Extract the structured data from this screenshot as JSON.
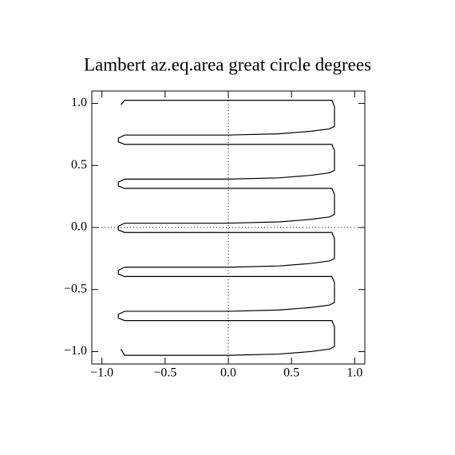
{
  "chart_data": {
    "type": "line",
    "title": "Lambert az.eq.area great circle degrees",
    "color": "#000000",
    "zero_lines": true,
    "xlim": [
      -1.08,
      1.08
    ],
    "ylim": [
      -1.1,
      1.1
    ],
    "xticks": [
      {
        "value": -1.0,
        "label": "−1.0"
      },
      {
        "value": -0.5,
        "label": "−0.5"
      },
      {
        "value": 0,
        "label": "0.0"
      },
      0.5,
      {
        "value": 1.0,
        "label": "1.0"
      }
    ],
    "yticks": [
      {
        "value": -1.0,
        "label": "−1.0"
      },
      {
        "value": -0.5,
        "label": "−0.5"
      },
      {
        "value": 0,
        "label": "0.0"
      },
      0.5,
      {
        "value": 1.0,
        "label": "1.0"
      }
    ],
    "x": [
      -0.85,
      -0.82,
      0,
      0.4,
      0.65,
      0.8,
      0.84,
      0.84,
      0.82,
      0.4,
      0,
      -0.4,
      -0.82,
      -0.87,
      -0.87,
      -0.82,
      0,
      0.4,
      0.65,
      0.8,
      0.84,
      0.84,
      0.82,
      0.4,
      0,
      -0.4,
      -0.82,
      -0.87,
      -0.87,
      -0.82,
      0,
      0.4,
      0.65,
      0.8,
      0.84,
      0.84,
      0.82,
      0.4,
      0,
      -0.4,
      -0.82,
      -0.87,
      -0.87,
      -0.82,
      0,
      0.4,
      0.65,
      0.8,
      0.84,
      0.84,
      0.82,
      0.4,
      0,
      -0.4,
      -0.82,
      -0.87,
      -0.87,
      -0.82,
      0,
      0.4,
      0.65,
      0.8,
      0.84,
      0.84,
      0.82,
      0.4,
      0,
      -0.4,
      -0.82,
      -0.87,
      -0.87,
      -0.82,
      0,
      0.4,
      0.65,
      0.8,
      0.84,
      0.84,
      0.82,
      0.4,
      0,
      -0.4,
      -0.82,
      -0.85
    ],
    "values": [
      -0.98,
      -1.03,
      -1.03,
      -1.02,
      -1.0,
      -0.98,
      -0.96,
      -0.8,
      -0.75,
      -0.75,
      -0.75,
      -0.75,
      -0.75,
      -0.73,
      -0.7,
      -0.675,
      -0.675,
      -0.665,
      -0.645,
      -0.625,
      -0.605,
      -0.445,
      -0.395,
      -0.395,
      -0.395,
      -0.395,
      -0.395,
      -0.375,
      -0.345,
      -0.32,
      -0.32,
      -0.31,
      -0.29,
      -0.27,
      -0.25,
      -0.09,
      -0.04,
      -0.04,
      -0.04,
      -0.04,
      -0.04,
      -0.02,
      0.01,
      0.035,
      0.035,
      0.045,
      0.065,
      0.085,
      0.105,
      0.265,
      0.315,
      0.315,
      0.315,
      0.315,
      0.315,
      0.335,
      0.365,
      0.39,
      0.39,
      0.4,
      0.42,
      0.44,
      0.46,
      0.62,
      0.67,
      0.67,
      0.67,
      0.67,
      0.67,
      0.69,
      0.72,
      0.745,
      0.745,
      0.755,
      0.775,
      0.795,
      0.815,
      0.975,
      1.025,
      1.025,
      1.025,
      1.025,
      1.025,
      0.99
    ]
  }
}
